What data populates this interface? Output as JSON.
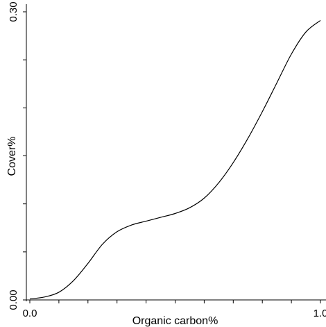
{
  "chart_data": {
    "type": "line",
    "title": "",
    "xlabel": "Organic carbon%",
    "ylabel": "Cover%",
    "xlim": [
      0.0,
      1.0
    ],
    "ylim": [
      0.0,
      0.3
    ],
    "x_tick_labels": [
      {
        "value": 0.0,
        "label": "0.0"
      },
      {
        "value": 1.0,
        "label": "1.0"
      }
    ],
    "x_minor_ticks": [
      0.1,
      0.2,
      0.3,
      0.4,
      0.5,
      0.6,
      0.7,
      0.8,
      0.9
    ],
    "y_tick_labels": [
      {
        "value": 0.0,
        "label": "0.00"
      },
      {
        "value": 0.3,
        "label": "0.30"
      }
    ],
    "y_minor_ticks": [
      0.05,
      0.1,
      0.15,
      0.2,
      0.25
    ],
    "grid": false,
    "series": [
      {
        "x": [
          0.0,
          0.05,
          0.1,
          0.15,
          0.2,
          0.25,
          0.3,
          0.35,
          0.4,
          0.45,
          0.5,
          0.55,
          0.6,
          0.65,
          0.7,
          0.75,
          0.8,
          0.85,
          0.9,
          0.95,
          1.0
        ],
        "y": [
          0.001,
          0.003,
          0.008,
          0.02,
          0.038,
          0.058,
          0.071,
          0.078,
          0.082,
          0.086,
          0.09,
          0.096,
          0.106,
          0.122,
          0.143,
          0.168,
          0.196,
          0.226,
          0.256,
          0.279,
          0.291
        ]
      }
    ]
  }
}
